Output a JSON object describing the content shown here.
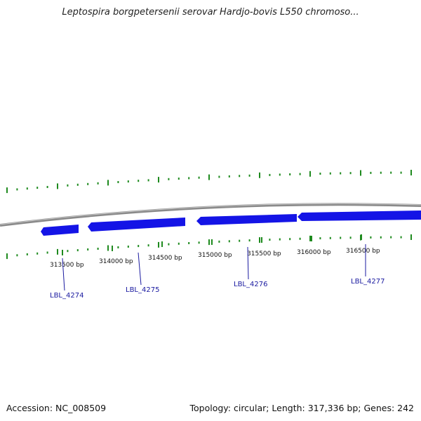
{
  "title": "Leptospira borgpetersenii serovar Hardjo-bovis L550 chromoso...",
  "footer": {
    "accession": "Accession: NC_008509",
    "summary": "Topology: circular; Length: 317,336 bp; Genes: 242"
  },
  "ticks": [
    {
      "label": "313500 bp"
    },
    {
      "label": "314000 bp"
    },
    {
      "label": "314500 bp"
    },
    {
      "label": "315000 bp"
    },
    {
      "label": "315500 bp"
    },
    {
      "label": "316000 bp"
    },
    {
      "label": "316500 bp"
    }
  ],
  "genes": [
    {
      "label": "LBL_4274"
    },
    {
      "label": "LBL_4275"
    },
    {
      "label": "LBL_4276"
    },
    {
      "label": "LBL_4277"
    }
  ],
  "colors": {
    "backbone": "#8a8a8a",
    "gene": "#1414e6",
    "gc_ticks": "#1e8a1e",
    "gene_label": "#1a1aa0"
  }
}
